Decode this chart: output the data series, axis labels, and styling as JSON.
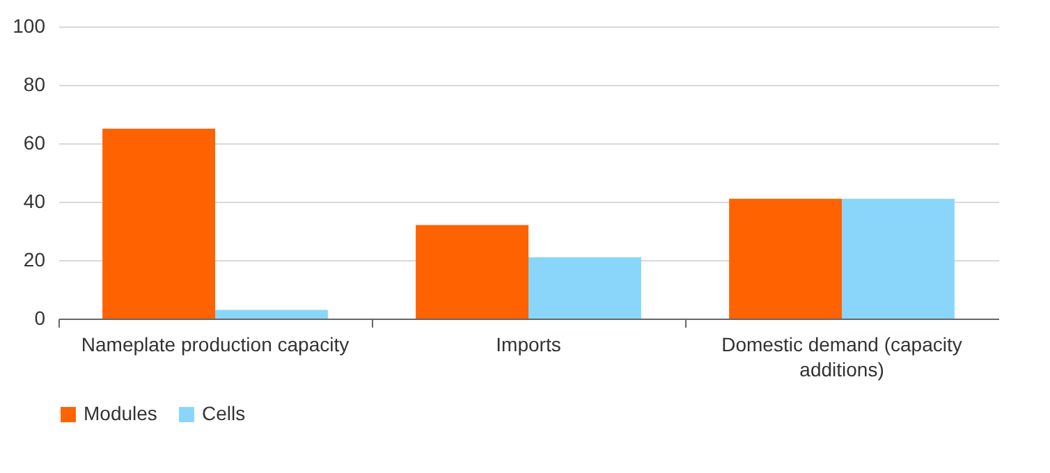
{
  "chart_data": {
    "type": "bar",
    "categories": [
      "Nameplate production capacity",
      "Imports",
      "Domestic demand (capacity additions)"
    ],
    "series": [
      {
        "name": "Modules",
        "color": "#ff6200",
        "values": [
          65,
          32,
          41
        ]
      },
      {
        "name": "Cells",
        "color": "#89d6fa",
        "values": [
          3,
          21,
          41
        ]
      }
    ],
    "ylim": [
      0,
      100
    ],
    "yticks": [
      0,
      20,
      40,
      60,
      80,
      100
    ],
    "grid": "y",
    "legend": "bottom"
  }
}
